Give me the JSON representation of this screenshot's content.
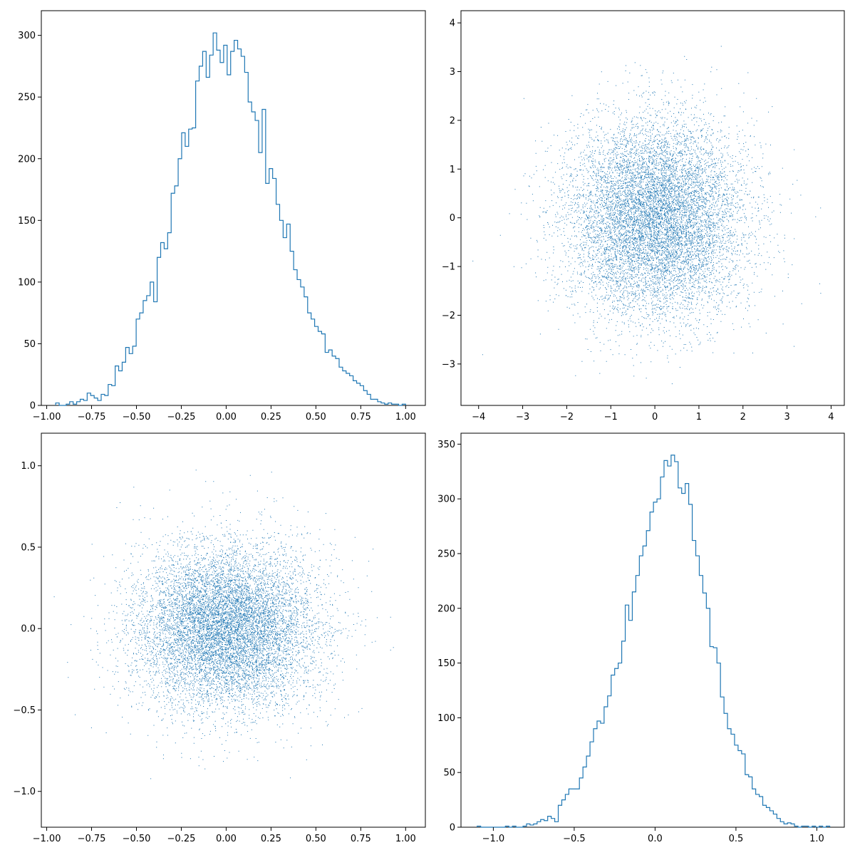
{
  "chart_data": [
    {
      "type": "histogram",
      "position": "top-left",
      "histtype": "step",
      "bins": 100,
      "xlim": [
        -1.03,
        1.11
      ],
      "ylim": [
        0,
        320
      ],
      "xticks": [
        -1.0,
        -0.75,
        -0.5,
        -0.25,
        0.0,
        0.25,
        0.5,
        0.75,
        1.0
      ],
      "xtick_labels": [
        "−1.00",
        "−0.75",
        "−0.50",
        "−0.25",
        "0.00",
        "0.25",
        "0.50",
        "0.75",
        "1.00"
      ],
      "yticks": [
        0,
        50,
        100,
        150,
        200,
        250,
        300
      ],
      "ytick_labels": [
        "0",
        "50",
        "100",
        "150",
        "200",
        "250",
        "300"
      ],
      "bin_range": [
        -0.95,
        1.0
      ],
      "counts": [
        2,
        0,
        0,
        1,
        3,
        1,
        3,
        5,
        4,
        10,
        8,
        6,
        4,
        9,
        8,
        17,
        16,
        32,
        28,
        35,
        47,
        42,
        48,
        70,
        75,
        85,
        89,
        100,
        84,
        120,
        132,
        127,
        140,
        172,
        178,
        200,
        221,
        210,
        224,
        225,
        263,
        275,
        287,
        266,
        284,
        302,
        288,
        278,
        292,
        268,
        287,
        296,
        289,
        283,
        270,
        246,
        238,
        231,
        205,
        240,
        180,
        192,
        184,
        163,
        150,
        136,
        147,
        125,
        110,
        102,
        96,
        88,
        75,
        70,
        64,
        60,
        58,
        43,
        45,
        40,
        38,
        31,
        28,
        26,
        24,
        20,
        18,
        16,
        12,
        9,
        5,
        5,
        3,
        2,
        1,
        2,
        1,
        1,
        0,
        1
      ]
    },
    {
      "type": "scatter",
      "position": "top-right",
      "marker": "pixel",
      "n_points": 10000,
      "distribution": "normal",
      "mean": [
        0,
        0
      ],
      "std": [
        1,
        1
      ],
      "xlim": [
        -4.4,
        4.3
      ],
      "ylim": [
        -3.85,
        4.25
      ],
      "xticks": [
        -4,
        -3,
        -2,
        -1,
        0,
        1,
        2,
        3,
        4
      ],
      "xtick_labels": [
        "−4",
        "−3",
        "−2",
        "−1",
        "0",
        "1",
        "2",
        "3",
        "4"
      ],
      "yticks": [
        -3,
        -2,
        -1,
        0,
        1,
        2,
        3,
        4
      ],
      "ytick_labels": [
        "−3",
        "−2",
        "−1",
        "0",
        "1",
        "2",
        "3",
        "4"
      ]
    },
    {
      "type": "scatter",
      "position": "bottom-left",
      "marker": "pixel",
      "n_points": 10000,
      "distribution": "normal",
      "mean": [
        0,
        0
      ],
      "std": [
        0.25,
        0.25
      ],
      "xlim": [
        -1.03,
        1.11
      ],
      "ylim": [
        -1.22,
        1.2
      ],
      "xticks": [
        -1.0,
        -0.75,
        -0.5,
        -0.25,
        0.0,
        0.25,
        0.5,
        0.75,
        1.0
      ],
      "xtick_labels": [
        "−1.00",
        "−0.75",
        "−0.50",
        "−0.25",
        "0.00",
        "0.25",
        "0.50",
        "0.75",
        "1.00"
      ],
      "yticks": [
        -1.0,
        -0.5,
        0.0,
        0.5,
        1.0
      ],
      "ytick_labels": [
        "−1.0",
        "−0.5",
        "0.0",
        "0.5",
        "1.0"
      ]
    },
    {
      "type": "histogram",
      "position": "bottom-right",
      "histtype": "step",
      "bins": 100,
      "xlim": [
        -1.2,
        1.17
      ],
      "ylim": [
        0,
        360
      ],
      "xticks": [
        -1.0,
        -0.5,
        0.0,
        0.5,
        1.0
      ],
      "xtick_labels": [
        "−1.0",
        "−0.5",
        "0.0",
        "0.5",
        "1.0"
      ],
      "yticks": [
        0,
        50,
        100,
        150,
        200,
        250,
        300,
        350
      ],
      "ytick_labels": [
        "0",
        "50",
        "100",
        "150",
        "200",
        "250",
        "300",
        "350"
      ],
      "bin_range": [
        -1.1,
        1.08
      ],
      "counts": [
        1,
        0,
        0,
        0,
        0,
        0,
        0,
        0,
        1,
        0,
        1,
        0,
        0,
        1,
        3,
        2,
        3,
        5,
        7,
        6,
        10,
        8,
        5,
        20,
        25,
        30,
        35,
        35,
        35,
        45,
        55,
        65,
        78,
        90,
        97,
        95,
        110,
        120,
        139,
        145,
        150,
        170,
        203,
        189,
        215,
        230,
        248,
        257,
        271,
        288,
        297,
        300,
        320,
        335,
        330,
        340,
        334,
        310,
        305,
        314,
        295,
        262,
        248,
        230,
        214,
        200,
        165,
        164,
        150,
        119,
        104,
        90,
        85,
        75,
        70,
        67,
        48,
        46,
        35,
        30,
        28,
        20,
        18,
        15,
        12,
        8,
        5,
        3,
        4,
        3,
        1,
        0,
        1,
        1,
        0,
        1,
        0,
        1,
        0,
        1
      ]
    }
  ],
  "style": {
    "series_color": "#1f77b4",
    "axis_color": "#000000",
    "background": "#ffffff"
  }
}
